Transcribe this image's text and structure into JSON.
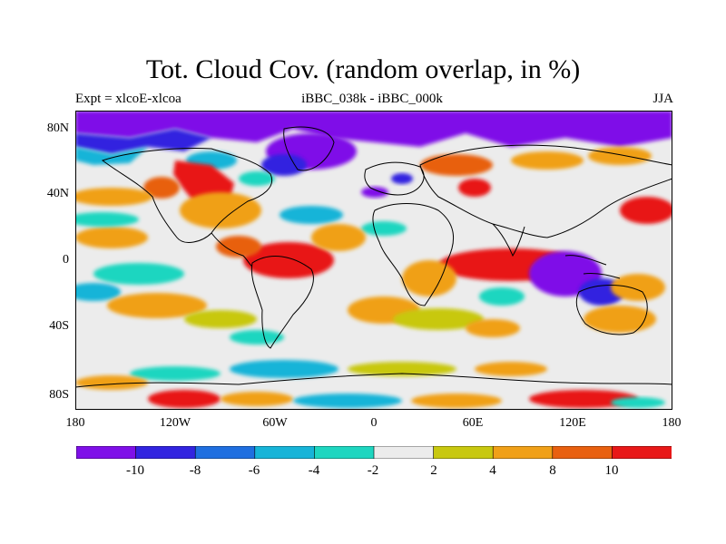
{
  "title": "Tot. Cloud Cov. (random overlap, in %)",
  "subtitle_left": "Expt = xlcoE-xlcoa",
  "subtitle_center": "iBBC_038k - iBBC_000k",
  "subtitle_right": "JJA",
  "y_axis_labels": [
    "80N",
    "40N",
    "0",
    "40S",
    "80S"
  ],
  "x_axis_labels": [
    "180",
    "120W",
    "60W",
    "0",
    "60E",
    "120E",
    "180"
  ],
  "colorbar": {
    "labels": [
      "-10",
      "-8",
      "-6",
      "-4",
      "-2",
      "2",
      "4",
      "8",
      "10"
    ],
    "colors": [
      "#7f10e8",
      "#3224e0",
      "#1f6fe0",
      "#17b4d8",
      "#1ed6c0",
      "#ececec",
      "#c8c810",
      "#f0a018",
      "#e86010",
      "#e81818"
    ]
  },
  "map_colors": {
    "neg_strong": "#7f10e8",
    "neg_mid": "#3224e0",
    "neg_blue": "#1f6fe0",
    "neg_cyan": "#17b4d8",
    "neg_teal": "#1ed6c0",
    "neutral": "#ececec",
    "pos_yellow": "#c8c810",
    "pos_orange": "#f0a018",
    "pos_dark_orange": "#e86010",
    "pos_red": "#e81818"
  }
}
